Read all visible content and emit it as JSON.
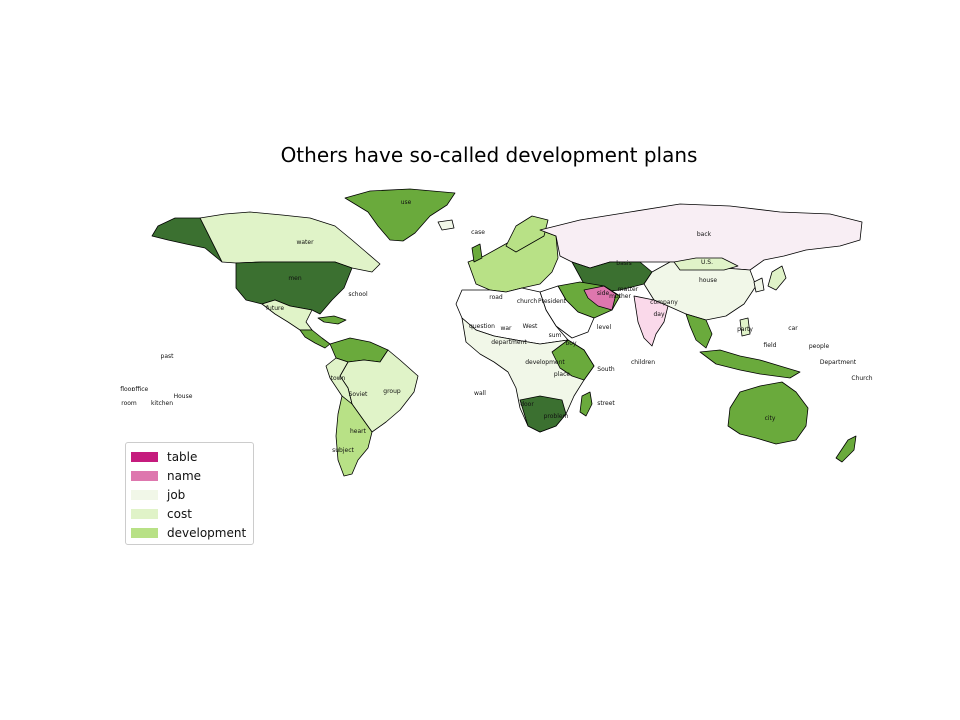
{
  "title": "Others have so-called development plans",
  "legend": [
    {
      "label": "table",
      "color": "#c51b7d"
    },
    {
      "label": "name",
      "color": "#de77ae"
    },
    {
      "label": "job",
      "color": "#f1f7e8"
    },
    {
      "label": "cost",
      "color": "#e0f3c8"
    },
    {
      "label": "development",
      "color": "#b8e186"
    }
  ],
  "colors": {
    "greenland": "#6aaa3c",
    "canada": "#e0f3c8",
    "usa": "#3b7030",
    "mexico": "#e0f3c8",
    "south_america": "#e0f3c8",
    "brazil": "#e0f3c8",
    "russia": "#f8eef4",
    "china": "#f1f7e8",
    "india": "#fad9ea",
    "australia": "#6aaa3c",
    "africa": "#f1f7e8",
    "sahara": "#ffffff",
    "saudi": "#ffffff",
    "europe": "#b8e186",
    "dark_green": "#3b7030",
    "mid_green": "#6aaa3c"
  },
  "region_labels": [
    {
      "text": "use"
    },
    {
      "text": "back"
    },
    {
      "text": "water"
    },
    {
      "text": "men"
    },
    {
      "text": "school"
    },
    {
      "text": "future"
    },
    {
      "text": "U.S."
    },
    {
      "text": "house"
    },
    {
      "text": "basis"
    },
    {
      "text": "case"
    },
    {
      "text": "road"
    },
    {
      "text": "church"
    },
    {
      "text": "President"
    },
    {
      "text": "war"
    },
    {
      "text": "West"
    },
    {
      "text": "sum"
    },
    {
      "text": "question"
    },
    {
      "text": "company"
    },
    {
      "text": "side"
    },
    {
      "text": "day"
    },
    {
      "text": "party"
    },
    {
      "text": "car"
    },
    {
      "text": "field"
    },
    {
      "text": "people"
    },
    {
      "text": "Department"
    },
    {
      "text": "Church"
    },
    {
      "text": "city"
    },
    {
      "text": "past"
    },
    {
      "text": "floor"
    },
    {
      "text": "office"
    },
    {
      "text": "room"
    },
    {
      "text": "kitchen"
    },
    {
      "text": "House"
    },
    {
      "text": "wall"
    },
    {
      "text": "town"
    },
    {
      "text": "group"
    },
    {
      "text": "Soviet"
    },
    {
      "text": "heart"
    },
    {
      "text": "subject"
    },
    {
      "text": "children"
    },
    {
      "text": "South"
    },
    {
      "text": "boy"
    },
    {
      "text": "place"
    },
    {
      "text": "door"
    },
    {
      "text": "problem"
    },
    {
      "text": "street"
    },
    {
      "text": "development"
    },
    {
      "text": "department"
    },
    {
      "text": "matter"
    },
    {
      "text": "mother"
    },
    {
      "text": "level"
    }
  ]
}
